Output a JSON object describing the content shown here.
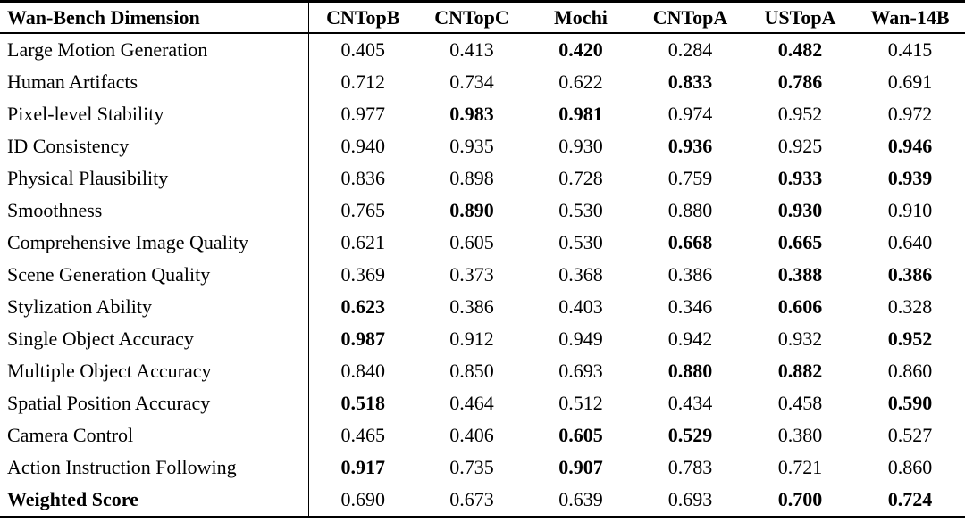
{
  "colors": {
    "background": "#ffffff",
    "text": "#000000",
    "rule": "#000000"
  },
  "table": {
    "header": {
      "dimension_label": "Wan-Bench Dimension",
      "models": [
        "CNTopB",
        "CNTopC",
        "Mochi",
        "CNTopA",
        "USTopA",
        "Wan-14B"
      ]
    },
    "rows": [
      {
        "label": "Large Motion Generation",
        "label_bold": false,
        "values": [
          "0.405",
          "0.413",
          "0.420",
          "0.284",
          "0.482",
          "0.415"
        ],
        "bold": [
          false,
          false,
          true,
          false,
          true,
          false
        ]
      },
      {
        "label": "Human Artifacts",
        "label_bold": false,
        "values": [
          "0.712",
          "0.734",
          "0.622",
          "0.833",
          "0.786",
          "0.691"
        ],
        "bold": [
          false,
          false,
          false,
          true,
          true,
          false
        ]
      },
      {
        "label": "Pixel-level Stability",
        "label_bold": false,
        "values": [
          "0.977",
          "0.983",
          "0.981",
          "0.974",
          "0.952",
          "0.972"
        ],
        "bold": [
          false,
          true,
          true,
          false,
          false,
          false
        ]
      },
      {
        "label": "ID Consistency",
        "label_bold": false,
        "values": [
          "0.940",
          "0.935",
          "0.930",
          "0.936",
          "0.925",
          "0.946"
        ],
        "bold": [
          false,
          false,
          false,
          true,
          false,
          true
        ]
      },
      {
        "label": "Physical Plausibility",
        "label_bold": false,
        "values": [
          "0.836",
          "0.898",
          "0.728",
          "0.759",
          "0.933",
          "0.939"
        ],
        "bold": [
          false,
          false,
          false,
          false,
          true,
          true
        ]
      },
      {
        "label": "Smoothness",
        "label_bold": false,
        "values": [
          "0.765",
          "0.890",
          "0.530",
          "0.880",
          "0.930",
          "0.910"
        ],
        "bold": [
          false,
          true,
          false,
          false,
          true,
          false
        ]
      },
      {
        "label": "Comprehensive Image Quality",
        "label_bold": false,
        "values": [
          "0.621",
          "0.605",
          "0.530",
          "0.668",
          "0.665",
          "0.640"
        ],
        "bold": [
          false,
          false,
          false,
          true,
          true,
          false
        ]
      },
      {
        "label": "Scene Generation Quality",
        "label_bold": false,
        "values": [
          "0.369",
          "0.373",
          "0.368",
          "0.386",
          "0.388",
          "0.386"
        ],
        "bold": [
          false,
          false,
          false,
          false,
          true,
          true
        ]
      },
      {
        "label": "Stylization Ability",
        "label_bold": false,
        "values": [
          "0.623",
          "0.386",
          "0.403",
          "0.346",
          "0.606",
          "0.328"
        ],
        "bold": [
          true,
          false,
          false,
          false,
          true,
          false
        ]
      },
      {
        "label": "Single Object Accuracy",
        "label_bold": false,
        "values": [
          "0.987",
          "0.912",
          "0.949",
          "0.942",
          "0.932",
          "0.952"
        ],
        "bold": [
          true,
          false,
          false,
          false,
          false,
          true
        ]
      },
      {
        "label": "Multiple Object Accuracy",
        "label_bold": false,
        "values": [
          "0.840",
          "0.850",
          "0.693",
          "0.880",
          "0.882",
          "0.860"
        ],
        "bold": [
          false,
          false,
          false,
          true,
          true,
          false
        ]
      },
      {
        "label": "Spatial Position Accuracy",
        "label_bold": false,
        "values": [
          "0.518",
          "0.464",
          "0.512",
          "0.434",
          "0.458",
          "0.590"
        ],
        "bold": [
          true,
          false,
          false,
          false,
          false,
          true
        ]
      },
      {
        "label": "Camera Control",
        "label_bold": false,
        "values": [
          "0.465",
          "0.406",
          "0.605",
          "0.529",
          "0.380",
          "0.527"
        ],
        "bold": [
          false,
          false,
          true,
          true,
          false,
          false
        ]
      },
      {
        "label": "Action Instruction Following",
        "label_bold": false,
        "values": [
          "0.917",
          "0.735",
          "0.907",
          "0.783",
          "0.721",
          "0.860"
        ],
        "bold": [
          true,
          false,
          true,
          false,
          false,
          false
        ]
      },
      {
        "label": "Weighted Score",
        "label_bold": true,
        "values": [
          "0.690",
          "0.673",
          "0.639",
          "0.693",
          "0.700",
          "0.724"
        ],
        "bold": [
          false,
          false,
          false,
          false,
          true,
          true
        ]
      }
    ]
  }
}
